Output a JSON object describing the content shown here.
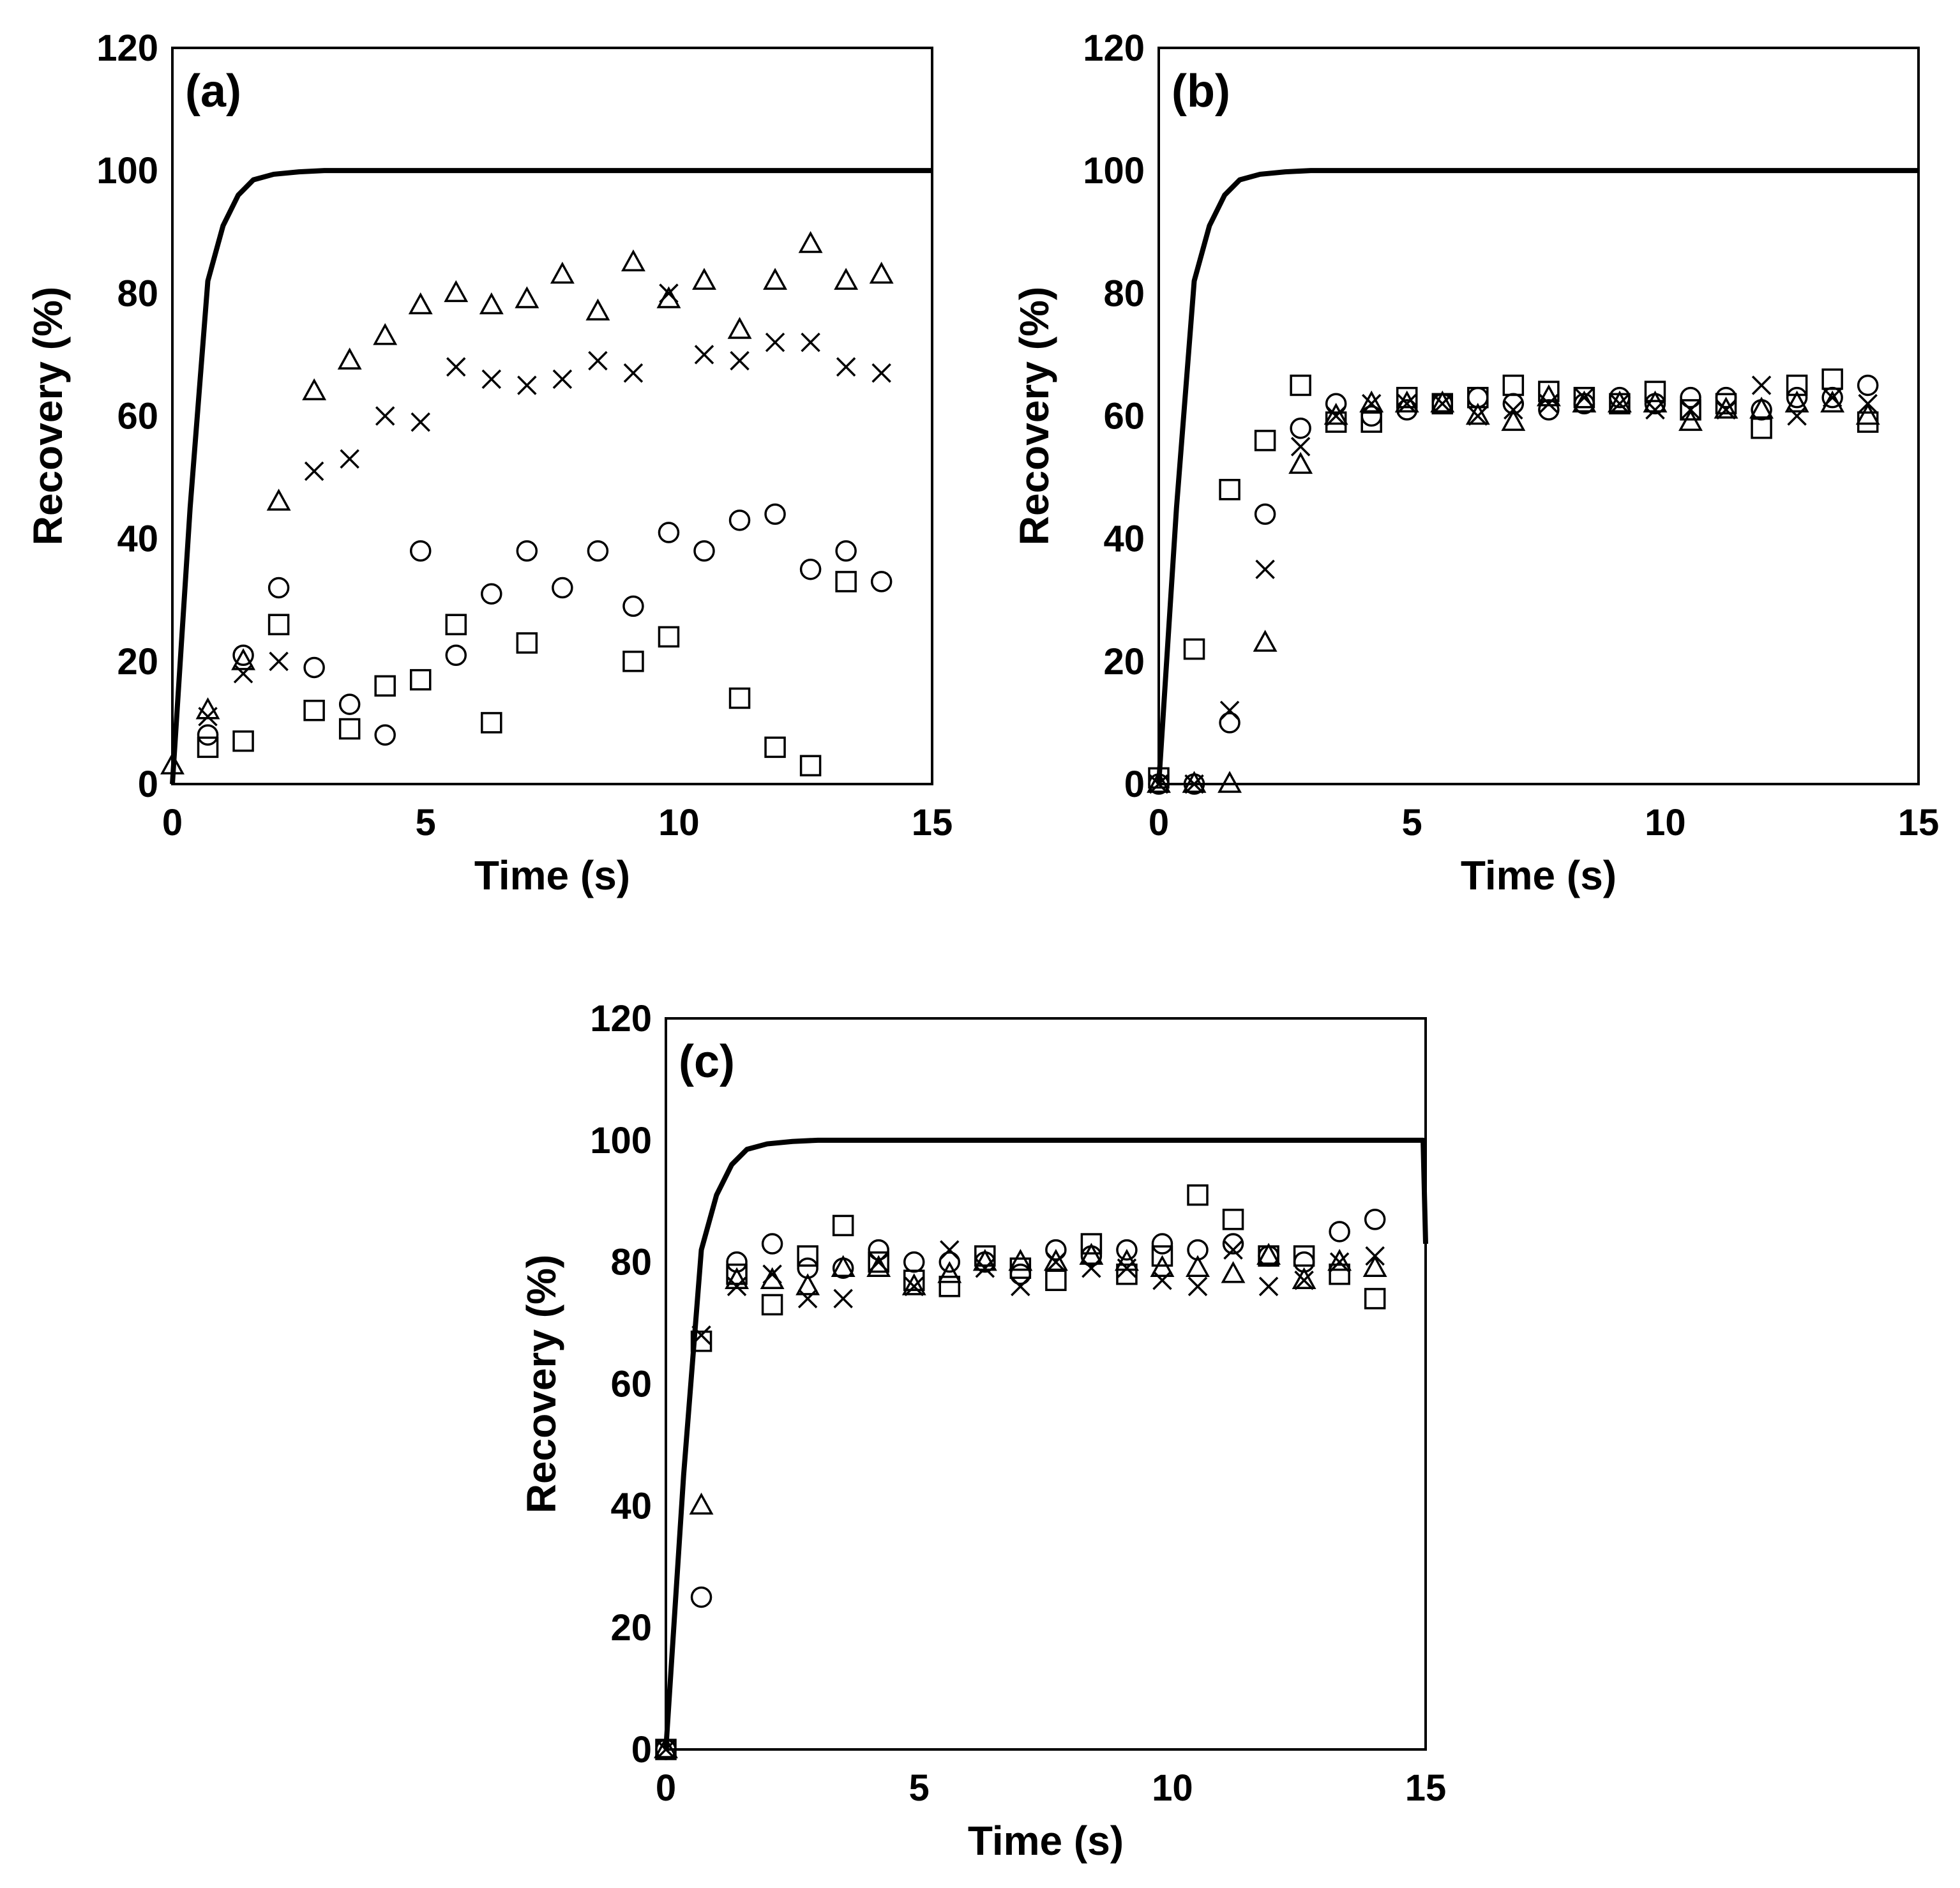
{
  "chart_data": [
    {
      "type": "scatter",
      "label": "(a)",
      "xlabel": "Time (s)",
      "ylabel": "Recovery (%)",
      "xlim": [
        0,
        15
      ],
      "ylim": [
        0,
        120
      ],
      "xticks": [
        "0",
        "5",
        "10",
        "15"
      ],
      "yticks": [
        "0",
        "20",
        "40",
        "60",
        "80",
        "100",
        "120"
      ],
      "model_line": {
        "x": [
          0,
          0.35,
          0.7,
          1.0,
          1.3,
          1.6,
          2.0,
          2.5,
          3.0,
          15
        ],
        "y": [
          0,
          45,
          82,
          91,
          96,
          98.5,
          99.4,
          99.8,
          100,
          100
        ]
      },
      "series": [
        {
          "name": "triangle",
          "marker": "triangle",
          "x": [
            0,
            0.7,
            1.4,
            2.1,
            2.8,
            3.5,
            4.2,
            4.9,
            5.6,
            6.3,
            7.0,
            7.7,
            8.4,
            9.1,
            9.8,
            10.5,
            11.2,
            11.9,
            12.6,
            13.3,
            14.0
          ],
          "y": [
            3,
            12,
            20,
            46,
            64,
            69,
            73,
            78,
            80,
            78,
            79,
            83,
            77,
            85,
            79,
            82,
            74,
            82,
            88,
            82,
            83
          ]
        },
        {
          "name": "cross",
          "marker": "cross",
          "x": [
            0.7,
            1.4,
            2.1,
            2.8,
            3.5,
            4.2,
            4.9,
            5.6,
            6.3,
            7.0,
            7.7,
            8.4,
            9.1,
            9.8,
            10.5,
            11.2,
            11.9,
            12.6,
            13.3,
            14.0
          ],
          "y": [
            11,
            18,
            20,
            51,
            53,
            60,
            59,
            68,
            66,
            65,
            66,
            69,
            67,
            80,
            70,
            69,
            72,
            72,
            68,
            67
          ]
        },
        {
          "name": "circle",
          "marker": "circle",
          "x": [
            0.7,
            1.4,
            2.1,
            2.8,
            3.5,
            4.2,
            4.9,
            5.6,
            6.3,
            7.0,
            7.7,
            8.4,
            9.1,
            9.8,
            10.5,
            11.2,
            11.9,
            12.6,
            13.3,
            14.0
          ],
          "y": [
            8,
            21,
            32,
            19,
            13,
            8,
            38,
            21,
            31,
            38,
            32,
            38,
            29,
            41,
            38,
            43,
            44,
            35,
            38,
            33
          ]
        },
        {
          "name": "square",
          "marker": "square",
          "x": [
            0.7,
            1.4,
            2.1,
            2.8,
            3.5,
            4.2,
            4.9,
            5.6,
            6.3,
            7.0,
            9.1,
            9.8,
            11.2,
            11.9,
            12.6,
            13.3
          ],
          "y": [
            6,
            7,
            26,
            12,
            9,
            16,
            17,
            26,
            10,
            23,
            20,
            24,
            14,
            6,
            3,
            33
          ]
        }
      ]
    },
    {
      "type": "scatter",
      "label": "(b)",
      "xlabel": "Time (s)",
      "ylabel": "Recovery (%)",
      "xlim": [
        0,
        15
      ],
      "ylim": [
        0,
        120
      ],
      "xticks": [
        "0",
        "5",
        "10",
        "15"
      ],
      "yticks": [
        "0",
        "20",
        "40",
        "60",
        "80",
        "100",
        "120"
      ],
      "model_line": {
        "x": [
          0,
          0.35,
          0.7,
          1.0,
          1.3,
          1.6,
          2.0,
          2.5,
          3.0,
          15
        ],
        "y": [
          0,
          45,
          82,
          91,
          96,
          98.5,
          99.4,
          99.8,
          100,
          100
        ]
      },
      "series": [
        {
          "name": "triangle",
          "marker": "triangle",
          "x": [
            0,
            0.7,
            1.4,
            2.1,
            2.8,
            3.5,
            4.2,
            4.9,
            5.6,
            6.3,
            7.0,
            7.7,
            8.4,
            9.1,
            9.8,
            10.5,
            11.2,
            11.9,
            12.6,
            13.3,
            14.0
          ],
          "y": [
            0,
            0,
            0,
            23,
            52,
            60,
            62,
            62,
            62,
            60,
            59,
            63,
            62,
            62,
            62,
            59,
            61,
            61,
            62,
            62,
            60
          ]
        },
        {
          "name": "cross",
          "marker": "cross",
          "x": [
            0,
            0.7,
            1.4,
            2.1,
            2.8,
            3.5,
            4.2,
            4.9,
            5.6,
            6.3,
            7.0,
            7.7,
            8.4,
            9.1,
            9.8,
            10.5,
            11.2,
            11.9,
            12.6,
            13.3,
            14.0
          ],
          "y": [
            0,
            0,
            12,
            35,
            55,
            60,
            62,
            62,
            62,
            60,
            61,
            62,
            63,
            62,
            61,
            61,
            61,
            65,
            60,
            63,
            62
          ]
        },
        {
          "name": "circle",
          "marker": "circle",
          "x": [
            0,
            0.7,
            1.4,
            2.1,
            2.8,
            3.5,
            4.2,
            4.9,
            5.6,
            6.3,
            7.0,
            7.7,
            8.4,
            9.1,
            9.8,
            10.5,
            11.2,
            11.9,
            12.6,
            13.3,
            14.0
          ],
          "y": [
            0,
            0,
            10,
            44,
            58,
            62,
            60,
            61,
            62,
            63,
            62,
            61,
            62,
            63,
            62,
            63,
            63,
            61,
            63,
            63,
            65
          ]
        },
        {
          "name": "square",
          "marker": "square",
          "x": [
            0,
            0.7,
            1.4,
            2.1,
            2.8,
            3.5,
            4.2,
            4.9,
            5.6,
            6.3,
            7.0,
            7.7,
            8.4,
            9.1,
            9.8,
            10.5,
            11.2,
            11.9,
            12.6,
            13.3,
            14.0
          ],
          "y": [
            1,
            22,
            48,
            56,
            65,
            59,
            59,
            63,
            62,
            63,
            65,
            64,
            63,
            62,
            64,
            61,
            62,
            58,
            65,
            66,
            59
          ]
        }
      ]
    },
    {
      "type": "scatter",
      "label": "(c)",
      "xlabel": "Time (s)",
      "ylabel": "Recovery (%)",
      "xlim": [
        0,
        15
      ],
      "ylim": [
        0,
        120
      ],
      "xticks": [
        "0",
        "5",
        "10",
        "15"
      ],
      "yticks": [
        "0",
        "20",
        "40",
        "60",
        "80",
        "100",
        "120"
      ],
      "model_line": {
        "x": [
          0,
          0.35,
          0.7,
          1.0,
          1.3,
          1.6,
          2.0,
          2.5,
          3.0,
          14.95,
          15.0
        ],
        "y": [
          0,
          45,
          82,
          91,
          96,
          98.5,
          99.4,
          99.8,
          100,
          100,
          83
        ]
      },
      "series": [
        {
          "name": "triangle",
          "marker": "triangle",
          "x": [
            0,
            0.7,
            1.4,
            2.1,
            2.8,
            3.5,
            4.2,
            4.9,
            5.6,
            6.3,
            7.0,
            7.7,
            8.4,
            9.1,
            9.8,
            10.5,
            11.2,
            11.9,
            12.6,
            13.3,
            14.0
          ],
          "y": [
            0,
            40,
            77,
            77,
            76,
            79,
            79,
            76,
            78,
            80,
            80,
            80,
            81,
            80,
            79,
            79,
            78,
            81,
            77,
            80,
            79
          ]
        },
        {
          "name": "cross",
          "marker": "cross",
          "x": [
            0,
            0.7,
            1.4,
            2.1,
            2.8,
            3.5,
            4.2,
            4.9,
            5.6,
            6.3,
            7.0,
            7.7,
            8.4,
            9.1,
            9.8,
            10.5,
            11.2,
            11.9,
            12.6,
            13.3,
            14.0
          ],
          "y": [
            0,
            68,
            76,
            78,
            74,
            74,
            80,
            76,
            82,
            79,
            76,
            80,
            79,
            79,
            77,
            76,
            82,
            76,
            77,
            80,
            81
          ]
        },
        {
          "name": "circle",
          "marker": "circle",
          "x": [
            0,
            0.7,
            1.4,
            2.1,
            2.8,
            3.5,
            4.2,
            4.9,
            5.6,
            6.3,
            7.0,
            7.7,
            8.4,
            9.1,
            9.8,
            10.5,
            11.2,
            11.9,
            12.6,
            13.3,
            14.0
          ],
          "y": [
            0,
            25,
            80,
            83,
            79,
            79,
            82,
            80,
            80,
            80,
            78,
            82,
            81,
            82,
            83,
            82,
            83,
            81,
            80,
            85,
            87
          ]
        },
        {
          "name": "square",
          "marker": "square",
          "x": [
            0,
            0.7,
            1.4,
            2.1,
            2.8,
            3.5,
            4.2,
            4.9,
            5.6,
            6.3,
            7.0,
            7.7,
            8.4,
            9.1,
            9.8,
            10.5,
            11.2,
            11.9,
            12.6,
            13.3,
            14.0
          ],
          "y": [
            0,
            67,
            78,
            73,
            81,
            86,
            80,
            77,
            76,
            81,
            79,
            77,
            83,
            78,
            81,
            91,
            87,
            81,
            81,
            78,
            74
          ]
        }
      ]
    }
  ]
}
